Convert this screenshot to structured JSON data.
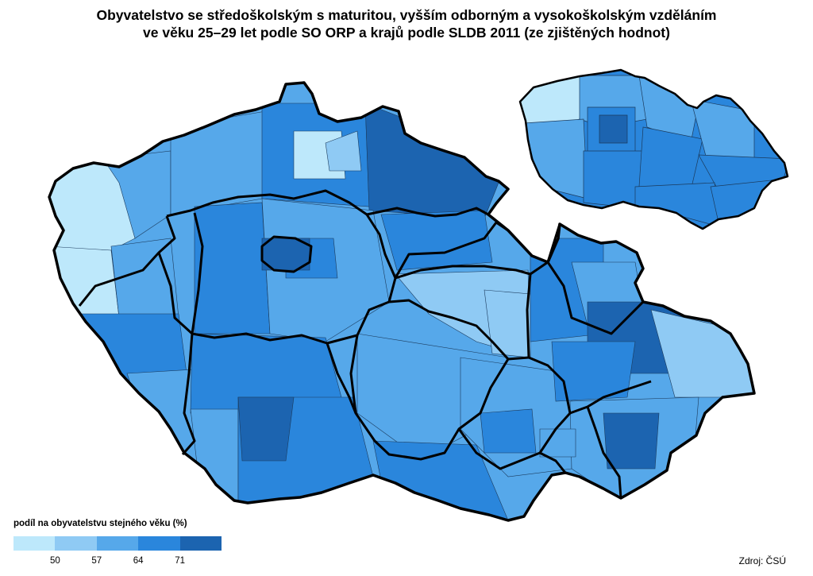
{
  "title": {
    "line1": "Obyvatelstvo se středoškolským s maturitou, vyšším odborným a vysokoškolským vzděláním",
    "line2": "ve věku 25–29 let podle SO ORP a krajů podle SLDB 2011 (ze zjištěných hodnot)"
  },
  "legend": {
    "title": "podíl na obyvatelstvu stejného věku (%)",
    "classes": [
      {
        "color": "#bde8fb"
      },
      {
        "color": "#8fcaf4"
      },
      {
        "color": "#56a8ea"
      },
      {
        "color": "#2a86dc"
      },
      {
        "color": "#1c64b0"
      }
    ],
    "thresholds": [
      "50",
      "57",
      "64",
      "71"
    ]
  },
  "source": "Zdroj: ČSÚ",
  "map": {
    "main_regions": [
      {
        "class": 1
      },
      {
        "class": 2
      },
      {
        "class": 3
      },
      {
        "class": 2
      },
      {
        "class": 3
      },
      {
        "class": 2
      },
      {
        "class": 2
      },
      {
        "class": 3
      },
      {
        "class": 2
      },
      {
        "class": 3
      },
      {
        "class": 3
      },
      {
        "class": 2
      },
      {
        "class": 2
      },
      {
        "class": 3
      }
    ],
    "inset_regions": [
      {
        "class": 1
      },
      {
        "class": 3
      },
      {
        "class": 2
      },
      {
        "class": 4
      },
      {
        "class": 3
      },
      {
        "class": 3
      },
      {
        "class": 3
      },
      {
        "class": 3
      },
      {
        "class": 3
      },
      {
        "class": 3
      },
      {
        "class": 3
      },
      {
        "class": 3
      },
      {
        "class": 3
      },
      {
        "class": 4
      }
    ]
  }
}
